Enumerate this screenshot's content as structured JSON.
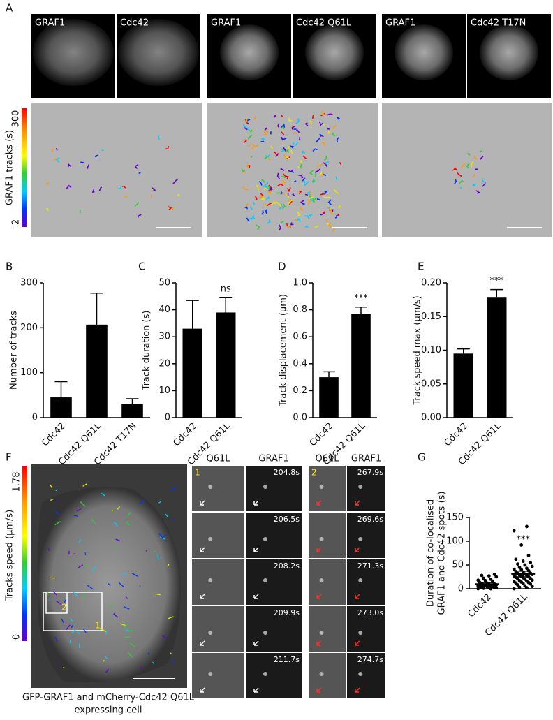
{
  "panel_labels": [
    "A",
    "B",
    "C",
    "D",
    "E",
    "F",
    "G"
  ],
  "panel_a": {
    "images": [
      {
        "left": "GRAF1",
        "right": "Cdc42"
      },
      {
        "left": "GRAF1",
        "right": "Cdc42 Q61L"
      },
      {
        "left": "GRAF1",
        "right": "Cdc42 T17N"
      }
    ],
    "colorbar": {
      "label": "GRAF1 tracks (s)",
      "max": "300",
      "min": "2"
    }
  },
  "panel_f": {
    "colorbar": {
      "label": "Tracks speed (μm/s)",
      "max": "1.78",
      "min": "0"
    },
    "region_labels": [
      "2",
      "1"
    ],
    "caption": [
      "GFP-GRAF1 and mCherry-Cdc42 Q61L",
      "expressing cell"
    ],
    "montages": [
      {
        "index": "1",
        "headers": [
          "Q61L",
          "GRAF1"
        ],
        "times": [
          "204.8s",
          "206.5s",
          "208.2s",
          "209.9s",
          "211.7s"
        ]
      },
      {
        "index": "2",
        "headers": [
          "Q61L",
          "GRAF1"
        ],
        "times": [
          "267.9s",
          "269.6s",
          "271.3s",
          "273.0s",
          "274.7s"
        ]
      }
    ]
  },
  "chart_data": [
    {
      "type": "bar",
      "ylabel": "Number of tracks",
      "categories": [
        "Cdc42",
        "Cdc42 Q61L",
        "Cdc42 T17N"
      ],
      "values": [
        45,
        207,
        30
      ],
      "errors": [
        35,
        70,
        12
      ],
      "color": "#000000",
      "ylim": [
        0,
        300
      ],
      "yticks": [
        0,
        100,
        200,
        300
      ]
    },
    {
      "type": "bar",
      "ylabel": "Track duration (s)",
      "categories": [
        "Cdc42",
        "Cdc42 Q61L"
      ],
      "values": [
        33,
        39
      ],
      "errors": [
        10.5,
        5.5
      ],
      "color": "#000000",
      "ylim": [
        0,
        50
      ],
      "yticks": [
        0,
        10,
        20,
        30,
        40,
        50
      ],
      "annotation": "ns"
    },
    {
      "type": "bar",
      "ylabel": "Track displacement (μm)",
      "categories": [
        "Cdc42",
        "Cdc42 Q61L"
      ],
      "values": [
        0.3,
        0.77
      ],
      "errors": [
        0.04,
        0.05
      ],
      "color": "#000000",
      "ylim": [
        0,
        1
      ],
      "yticks": [
        {
          "value": 0,
          "label": "0.0"
        },
        0.2,
        0.4,
        0.6,
        0.8,
        {
          "value": 1,
          "label": "1.0"
        }
      ],
      "annotation": "***"
    },
    {
      "type": "bar",
      "ylabel": "Track speed max (μm/s)",
      "categories": [
        "Cdc42",
        "Cdc42 Q61L"
      ],
      "values": [
        0.095,
        0.178
      ],
      "errors": [
        0.007,
        0.012
      ],
      "color": "#000000",
      "ylim": [
        0,
        0.2
      ],
      "yticks": [
        {
          "value": 0,
          "label": "0.00"
        },
        0.05,
        {
          "value": 0.1,
          "label": "0.10"
        },
        0.15,
        {
          "value": 0.2,
          "label": "0.20"
        }
      ],
      "annotation": "***"
    },
    {
      "type": "strip",
      "ylabel": [
        "Duration of co-localised",
        "GRAF1 and Cdc42 spots (s)"
      ],
      "categories": [
        "Cdc42",
        "Cdc42 Q61L"
      ],
      "values": [
        [
          0,
          0,
          1,
          2,
          2,
          3,
          3,
          4,
          5,
          5,
          6,
          6,
          7,
          8,
          8,
          9,
          10,
          10,
          12,
          13,
          15,
          17,
          18,
          20,
          22,
          25,
          27,
          28,
          30
        ],
        [
          0,
          2,
          3,
          5,
          6,
          8,
          10,
          11,
          12,
          13,
          14,
          15,
          16,
          17,
          18,
          20,
          21,
          22,
          23,
          24,
          25,
          26,
          27,
          28,
          29,
          30,
          31,
          32,
          33,
          35,
          36,
          38,
          40,
          41,
          43,
          45,
          47,
          50,
          52,
          55,
          58,
          62,
          70,
          92,
          122,
          131
        ]
      ],
      "means": [
        10,
        31
      ],
      "errors": [
        3,
        6
      ],
      "color": "#000000",
      "ylim": [
        0,
        150
      ],
      "yticks": [
        0,
        50,
        100,
        150
      ],
      "annotation": "***"
    }
  ]
}
